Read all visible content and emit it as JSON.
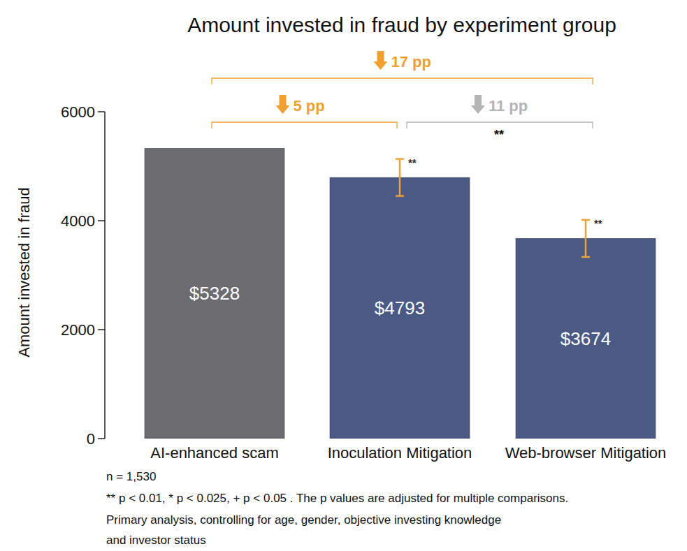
{
  "chart_data": {
    "type": "bar",
    "title": "Amount invested in fraud by experiment group",
    "y_label": "Amount invested in fraud",
    "categories": [
      "AI-enhanced scam",
      "Inoculation Mitigation",
      "Web-browser Mitigation"
    ],
    "values": [
      5328,
      4793,
      3674
    ],
    "value_labels": [
      "$5328",
      "$4793",
      "$3674"
    ],
    "data_labels": true,
    "colors": [
      "#6c6c70",
      "#4b5a85",
      "#4b5a85"
    ],
    "errors": [
      null,
      340,
      340
    ],
    "significance": [
      null,
      "**",
      "**"
    ],
    "ylim": [
      0,
      6000
    ],
    "yticks": [
      0,
      2000,
      4000,
      6000
    ],
    "grid": false,
    "annotations": [
      {
        "label": "17 pp",
        "from": "AI-enhanced scam",
        "to": "Web-browser Mitigation",
        "color": "#f0a030"
      },
      {
        "label": "5 pp",
        "from": "AI-enhanced scam",
        "to": "Inoculation Mitigation",
        "color": "#f0a030"
      },
      {
        "label": "11 pp",
        "from": "Inoculation Mitigation",
        "to": "Web-browser Mitigation",
        "color": "#b4b4b4",
        "significance": "**"
      }
    ],
    "notes": [
      "n = 1,530",
      "** p < 0.01, * p < 0.025, + p < 0.05 . The p values are adjusted for multiple comparisons.",
      "Primary analysis, controlling for age, gender, objective investing knowledge",
      "and investor status"
    ]
  }
}
